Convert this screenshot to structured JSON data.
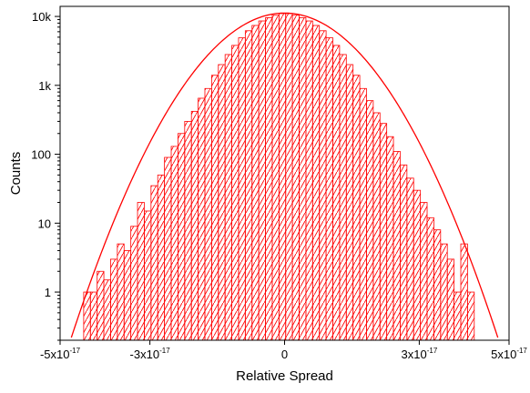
{
  "chart_data": {
    "type": "bar",
    "xlabel": "Relative Spread",
    "ylabel": "Counts",
    "xlim": [
      -5e-17,
      5e-17
    ],
    "ylim": [
      0.2,
      14000
    ],
    "y_scale": "log",
    "x_ticks": [
      {
        "value": -5e-17,
        "base": "-5x10",
        "exp": "-17"
      },
      {
        "value": -3e-17,
        "base": "-3x10",
        "exp": "-17"
      },
      {
        "value": 0,
        "base": "0",
        "exp": ""
      },
      {
        "value": 3e-17,
        "base": "3x10",
        "exp": "-17"
      },
      {
        "value": 5e-17,
        "base": "5x10",
        "exp": "-17"
      }
    ],
    "y_ticks": [
      {
        "value": 1,
        "label": "1"
      },
      {
        "value": 10,
        "label": "10"
      },
      {
        "value": 100,
        "label": "100"
      },
      {
        "value": 1000,
        "label": "1k"
      },
      {
        "value": 10000,
        "label": "10k"
      }
    ],
    "grid": false,
    "bin_width": 1.5e-18,
    "bins": [
      {
        "x": -4.4e-17,
        "count": 1
      },
      {
        "x": -4.25e-17,
        "count": 1
      },
      {
        "x": -4.1e-17,
        "count": 2
      },
      {
        "x": -3.95e-17,
        "count": 1.5
      },
      {
        "x": -3.8e-17,
        "count": 3
      },
      {
        "x": -3.65e-17,
        "count": 5
      },
      {
        "x": -3.5e-17,
        "count": 4
      },
      {
        "x": -3.35e-17,
        "count": 9
      },
      {
        "x": -3.2e-17,
        "count": 20
      },
      {
        "x": -3.05e-17,
        "count": 15
      },
      {
        "x": -2.9e-17,
        "count": 35
      },
      {
        "x": -2.75e-17,
        "count": 50
      },
      {
        "x": -2.6e-17,
        "count": 90
      },
      {
        "x": -2.45e-17,
        "count": 130
      },
      {
        "x": -2.3e-17,
        "count": 200
      },
      {
        "x": -2.15e-17,
        "count": 300
      },
      {
        "x": -2e-17,
        "count": 420
      },
      {
        "x": -1.85e-17,
        "count": 650
      },
      {
        "x": -1.7e-17,
        "count": 900
      },
      {
        "x": -1.55e-17,
        "count": 1400
      },
      {
        "x": -1.4e-17,
        "count": 2000
      },
      {
        "x": -1.25e-17,
        "count": 2800
      },
      {
        "x": -1.1e-17,
        "count": 3800
      },
      {
        "x": -9.5e-18,
        "count": 4900
      },
      {
        "x": -8e-18,
        "count": 6200
      },
      {
        "x": -6.5e-18,
        "count": 7400
      },
      {
        "x": -5e-18,
        "count": 8600
      },
      {
        "x": -3.5e-18,
        "count": 9600
      },
      {
        "x": -2e-18,
        "count": 10400
      },
      {
        "x": -5e-19,
        "count": 11000
      },
      {
        "x": 1e-18,
        "count": 11000
      },
      {
        "x": 2.5e-18,
        "count": 10400
      },
      {
        "x": 4e-18,
        "count": 9600
      },
      {
        "x": 5.5e-18,
        "count": 8600
      },
      {
        "x": 7e-18,
        "count": 7400
      },
      {
        "x": 8.5e-18,
        "count": 6200
      },
      {
        "x": 1e-17,
        "count": 4900
      },
      {
        "x": 1.15e-17,
        "count": 3800
      },
      {
        "x": 1.3e-17,
        "count": 2800
      },
      {
        "x": 1.45e-17,
        "count": 2000
      },
      {
        "x": 1.6e-17,
        "count": 1400
      },
      {
        "x": 1.75e-17,
        "count": 900
      },
      {
        "x": 1.9e-17,
        "count": 600
      },
      {
        "x": 2.05e-17,
        "count": 400
      },
      {
        "x": 2.2e-17,
        "count": 280
      },
      {
        "x": 2.35e-17,
        "count": 180
      },
      {
        "x": 2.5e-17,
        "count": 110
      },
      {
        "x": 2.65e-17,
        "count": 70
      },
      {
        "x": 2.8e-17,
        "count": 45
      },
      {
        "x": 2.95e-17,
        "count": 30
      },
      {
        "x": 3.1e-17,
        "count": 20
      },
      {
        "x": 3.25e-17,
        "count": 12
      },
      {
        "x": 3.4e-17,
        "count": 8
      },
      {
        "x": 3.55e-17,
        "count": 5
      },
      {
        "x": 3.7e-17,
        "count": 3
      },
      {
        "x": 3.85e-17,
        "count": 1
      },
      {
        "x": 4e-17,
        "count": 5
      },
      {
        "x": 4.15e-17,
        "count": 1
      }
    ],
    "fit_curve": {
      "type": "gaussian",
      "amplitude": 11200,
      "mean": 0,
      "sigma": 1.02e-17
    },
    "colors": {
      "bars": "#ff0000",
      "fit": "#ff0000",
      "frame": "#000000",
      "background": "#ffffff"
    }
  }
}
